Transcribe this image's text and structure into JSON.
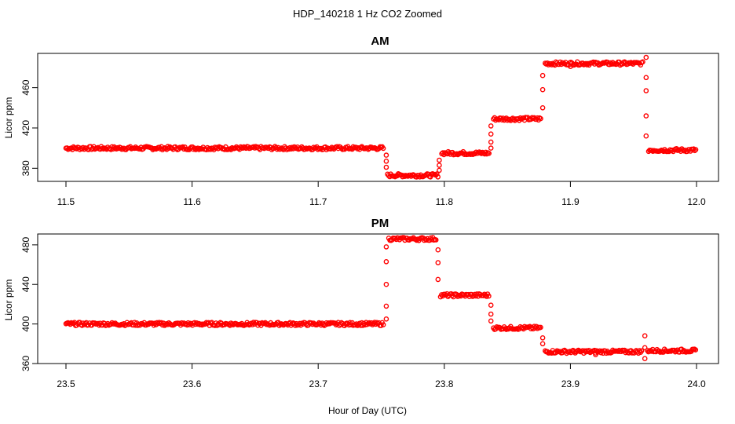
{
  "chart_data": {
    "title": "HDP_140218  1 Hz CO2 Zoomed",
    "xlabel": "Hour of Day (UTC)",
    "marker": "open circle",
    "color": "#ff0000",
    "panels": [
      {
        "type": "scatter",
        "title": "AM",
        "ylabel": "Licor ppm",
        "xlim": [
          11.5,
          12.0
        ],
        "ylim": [
          367,
          494
        ],
        "x_ticks": [
          "11.5",
          "11.6",
          "11.7",
          "11.8",
          "11.9",
          "12.0"
        ],
        "y_ticks": [
          "380",
          "420",
          "460"
        ],
        "segments": [
          {
            "x_start": 11.5,
            "x_end": 11.752,
            "y": 400
          },
          {
            "x_start": 11.755,
            "x_end": 11.795,
            "y": 373
          },
          {
            "x_start": 11.798,
            "x_end": 11.836,
            "y": 395
          },
          {
            "x_start": 11.839,
            "x_end": 11.877,
            "y": 429
          },
          {
            "x_start": 11.88,
            "x_end": 11.958,
            "y": 484
          },
          {
            "x_start": 11.962,
            "x_end": 12.0,
            "y": 398
          }
        ],
        "transitions": [
          {
            "x": 11.754,
            "y": [
              393,
              387,
              381
            ]
          },
          {
            "x": 11.796,
            "y": [
              378,
              383,
              388
            ]
          },
          {
            "x": 11.837,
            "y": [
              400,
              406,
              414,
              422
            ]
          },
          {
            "x": 11.878,
            "y": [
              440,
              458,
              472
            ]
          },
          {
            "x": 11.96,
            "y": [
              470,
              457,
              432,
              412
            ]
          }
        ],
        "outliers": [
          {
            "x": 11.96,
            "y": 490
          },
          {
            "x": 11.9,
            "y": 481
          }
        ]
      },
      {
        "type": "scatter",
        "title": "PM",
        "ylabel": "Licor ppm",
        "xlim": [
          23.5,
          24.0
        ],
        "ylim": [
          360,
          491
        ],
        "x_ticks": [
          "23.5",
          "23.6",
          "23.7",
          "23.8",
          "23.9",
          "24.0"
        ],
        "y_ticks": [
          "360",
          "400",
          "440",
          "480"
        ],
        "segments": [
          {
            "x_start": 23.5,
            "x_end": 23.752,
            "y": 400
          },
          {
            "x_start": 23.756,
            "x_end": 23.794,
            "y": 486
          },
          {
            "x_start": 23.797,
            "x_end": 23.836,
            "y": 429
          },
          {
            "x_start": 23.839,
            "x_end": 23.877,
            "y": 396
          },
          {
            "x_start": 23.88,
            "x_end": 23.957,
            "y": 372
          },
          {
            "x_start": 23.961,
            "x_end": 24.0,
            "y": 373
          }
        ],
        "transitions": [
          {
            "x": 23.754,
            "y": [
              405,
              418,
              440,
              463,
              478
            ]
          },
          {
            "x": 23.795,
            "y": [
              475,
              462,
              445
            ]
          },
          {
            "x": 23.837,
            "y": [
              419,
              410,
              403
            ]
          },
          {
            "x": 23.878,
            "y": [
              386,
              380
            ]
          },
          {
            "x": 23.959,
            "y": [
              376,
              388,
              365
            ]
          }
        ],
        "outliers": [
          {
            "x": 23.92,
            "y": 369
          }
        ]
      }
    ]
  }
}
